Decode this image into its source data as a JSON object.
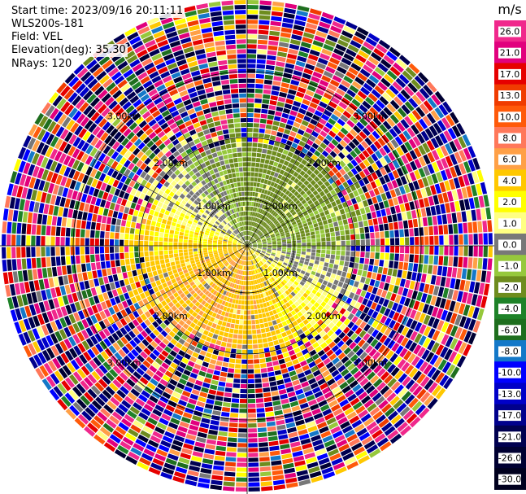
{
  "header": {
    "start_time": "Start time: 2023/09/16 20:11:11",
    "instrument": "WLS200s-181",
    "field": "Field: VEL",
    "elevation": "Elevation(deg): 35.30",
    "nrays": "NRays: 120"
  },
  "chart_data": {
    "type": "heatmap",
    "projection": "polar PPI",
    "title": "",
    "n_rays": 120,
    "range_rings_km": [
      1.0,
      2.0,
      3.0
    ],
    "range_ring_labels": [
      "1.00km",
      "2.00km",
      "3.00km"
    ],
    "colorbar": {
      "unit": "m/s",
      "tick_labels": [
        "26.0",
        "21.0",
        "17.0",
        "13.0",
        "10.0",
        "8.0",
        "6.0",
        "4.0",
        "2.0",
        "1.0",
        "0.0",
        "-1.0",
        "-2.0",
        "-4.0",
        "-6.0",
        "-8.0",
        "-10.0",
        "-13.0",
        "-17.0",
        "-21.0",
        "-26.0",
        "-30.0"
      ],
      "colors": [
        "#f0288c",
        "#e1007d",
        "#e60000",
        "#f03c00",
        "#ff5a0a",
        "#ff785a",
        "#ffa046",
        "#ffc800",
        "#ffff00",
        "#ffff82",
        "#787878",
        "#96c83c",
        "#6e8c1e",
        "#1e8228",
        "#1e6e1e",
        "#1478c8",
        "#0000ff",
        "#0000c8",
        "#00008c",
        "#000050",
        "#000032",
        "#00001e"
      ]
    }
  }
}
